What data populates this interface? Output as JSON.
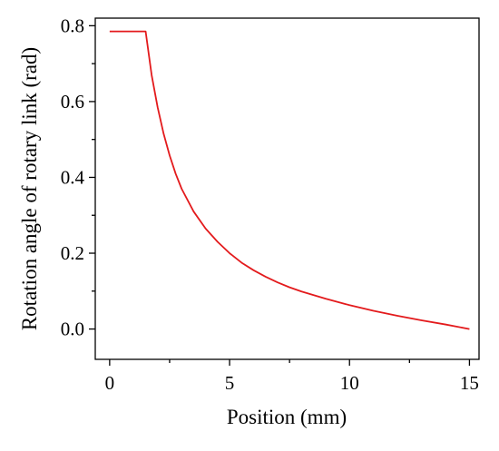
{
  "chart_data": {
    "type": "line",
    "xlabel": "Position (mm)",
    "ylabel": "Rotation angle of rotary link (rad)",
    "xlim": [
      -0.6,
      15.4
    ],
    "ylim": [
      -0.08,
      0.82
    ],
    "x_ticks": [
      0,
      5,
      10,
      15
    ],
    "x_tick_labels": [
      "0",
      "5",
      "10",
      "15"
    ],
    "x_minor_ticks": [
      2.5,
      7.5,
      12.5
    ],
    "y_ticks": [
      0.0,
      0.2,
      0.4,
      0.6,
      0.8
    ],
    "y_tick_labels": [
      "0.0",
      "0.2",
      "0.4",
      "0.6",
      "0.8"
    ],
    "y_minor_ticks": [
      0.1,
      0.3,
      0.5,
      0.7
    ],
    "grid": false,
    "legend": "none",
    "series": [
      {
        "color": "#e31a1c",
        "x": [
          0,
          0.5,
          1.0,
          1.5,
          1.75,
          2.0,
          2.25,
          2.5,
          2.75,
          3.0,
          3.5,
          4.0,
          4.5,
          5.0,
          5.5,
          6.0,
          6.5,
          7.0,
          7.5,
          8.0,
          9.0,
          10.0,
          11.0,
          12.0,
          13.0,
          14.0,
          15.0
        ],
        "y": [
          0.785,
          0.785,
          0.785,
          0.785,
          0.67,
          0.585,
          0.515,
          0.458,
          0.41,
          0.37,
          0.31,
          0.265,
          0.23,
          0.2,
          0.175,
          0.155,
          0.138,
          0.123,
          0.11,
          0.099,
          0.08,
          0.063,
          0.048,
          0.035,
          0.023,
          0.012,
          0.0
        ]
      }
    ]
  }
}
